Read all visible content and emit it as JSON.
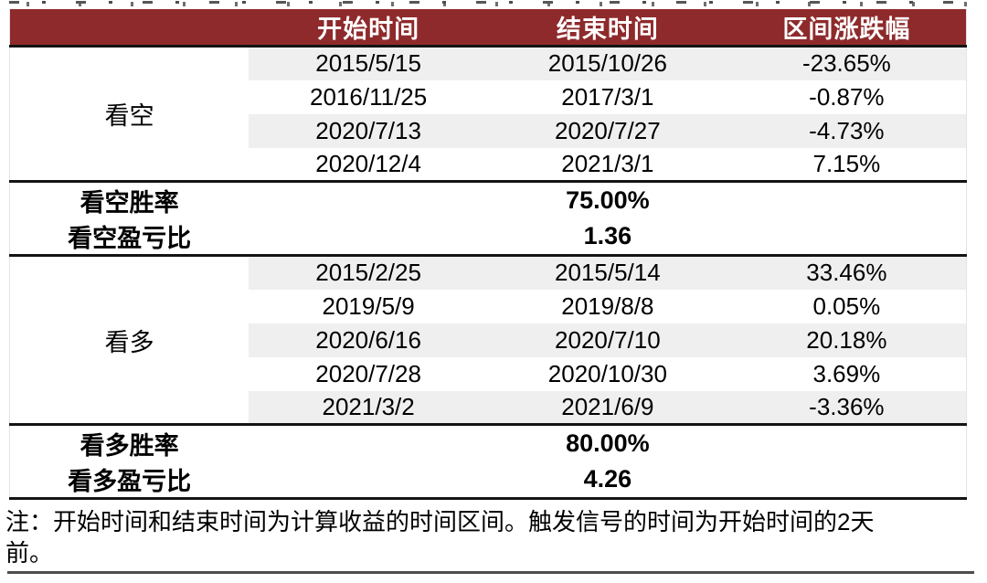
{
  "table": {
    "header": {
      "start": "开始时间",
      "end": "结束时间",
      "change": "区间涨跌幅"
    },
    "bear": {
      "label": "看空",
      "rows": [
        {
          "start": "2015/5/15",
          "end": "2015/10/26",
          "change": "-23.65%"
        },
        {
          "start": "2016/11/25",
          "end": "2017/3/1",
          "change": "-0.87%"
        },
        {
          "start": "2020/7/13",
          "end": "2020/7/27",
          "change": "-4.73%"
        },
        {
          "start": "2020/12/4",
          "end": "2021/3/1",
          "change": "7.15%"
        }
      ],
      "win_rate_label": "看空胜率",
      "win_rate_value": "75.00%",
      "pl_ratio_label": "看空盈亏比",
      "pl_ratio_value": "1.36"
    },
    "bull": {
      "label": "看多",
      "rows": [
        {
          "start": "2015/2/25",
          "end": "2015/5/14",
          "change": "33.46%"
        },
        {
          "start": "2019/5/9",
          "end": "2019/8/8",
          "change": "0.05%"
        },
        {
          "start": "2020/6/16",
          "end": "2020/7/10",
          "change": "20.18%"
        },
        {
          "start": "2020/7/28",
          "end": "2020/10/30",
          "change": "3.69%"
        },
        {
          "start": "2021/3/2",
          "end": "2021/6/9",
          "change": "-3.36%"
        }
      ],
      "win_rate_label": "看多胜率",
      "win_rate_value": "80.00%",
      "pl_ratio_label": "看多盈亏比",
      "pl_ratio_value": "4.26"
    }
  },
  "note": {
    "lines": [
      "注：开始时间和结束时间为计算收益的时间区间。触发信号的时间为开始时间的2天",
      "前。"
    ]
  },
  "colors": {
    "header_bg": "#8e2a2b",
    "header_text": "#ffffff",
    "stripe": "#efefef",
    "rule": "#141414",
    "bottom_rule": "#4d4d4d",
    "body_text": "#000000"
  }
}
